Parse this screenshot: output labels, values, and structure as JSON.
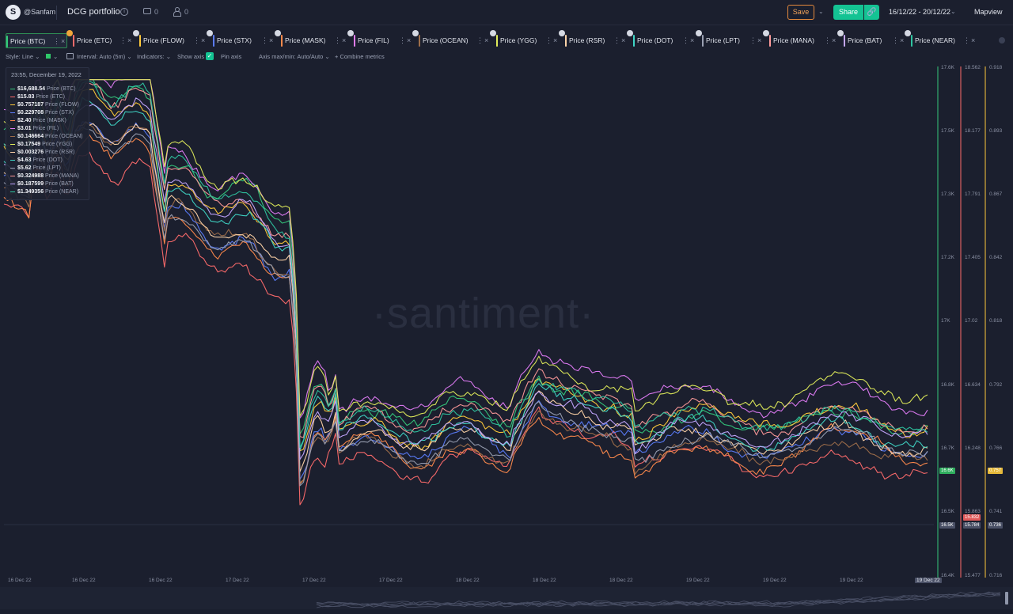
{
  "header": {
    "author": "@Sanfam",
    "title": "DCG portfolio",
    "comments": "0",
    "users": "0",
    "save": "Save",
    "share": "Share",
    "date_range": "16/12/22 - 20/12/22",
    "mapview": "Mapview"
  },
  "metrics": [
    {
      "label": "Price (BTC)",
      "color": "#34c77b"
    },
    {
      "label": "Price (ETC)",
      "color": "#ff6b6b"
    },
    {
      "label": "Price (FLOW)",
      "color": "#ffca3a"
    },
    {
      "label": "Price (STX)",
      "color": "#5b7cfa"
    },
    {
      "label": "Price (MASK)",
      "color": "#ff8a4c"
    },
    {
      "label": "Price (FIL)",
      "color": "#e07bf5"
    },
    {
      "label": "Price (OCEAN)",
      "color": "#9e6e4a"
    },
    {
      "label": "Price (YGG)",
      "color": "#e0ec5a"
    },
    {
      "label": "Price (RSR)",
      "color": "#ffd4a8"
    },
    {
      "label": "Price (DOT)",
      "color": "#3fd6c6"
    },
    {
      "label": "Price (LPT)",
      "color": "#9aa0b2"
    },
    {
      "label": "Price (MANA)",
      "color": "#ff9a9a"
    },
    {
      "label": "Price (BAT)",
      "color": "#c4a7ff"
    },
    {
      "label": "Price (NEAR)",
      "color": "#2ec4a0"
    }
  ],
  "settings": {
    "style": "Style: Line",
    "interval": "Interval: Auto (5m)",
    "indicators": "Indicators:",
    "show_axis": "Show axis",
    "pin_axis": "Pin axis",
    "axis_minmax": "Axis max/min: Auto/Auto",
    "combine": "Combine metrics"
  },
  "tooltip": {
    "date": "23:55, December 19, 2022",
    "rows": [
      {
        "value": "$16,688.54",
        "name": "Price (BTC)",
        "color": "#34c77b"
      },
      {
        "value": "$15.83",
        "name": "Price (ETC)",
        "color": "#ff6b6b"
      },
      {
        "value": "$0.757187",
        "name": "Price (FLOW)",
        "color": "#ffca3a"
      },
      {
        "value": "$0.229708",
        "name": "Price (STX)",
        "color": "#5b7cfa"
      },
      {
        "value": "$2.40",
        "name": "Price (MASK)",
        "color": "#ff8a4c"
      },
      {
        "value": "$3.01",
        "name": "Price (FIL)",
        "color": "#e07bf5"
      },
      {
        "value": "$0.146664",
        "name": "Price (OCEAN)",
        "color": "#9e6e4a"
      },
      {
        "value": "$0.17549",
        "name": "Price (YGG)",
        "color": "#e0ec5a"
      },
      {
        "value": "$0.003276",
        "name": "Price (RSR)",
        "color": "#ffd4a8"
      },
      {
        "value": "$4.63",
        "name": "Price (DOT)",
        "color": "#3fd6c6"
      },
      {
        "value": "$5.62",
        "name": "Price (LPT)",
        "color": "#9aa0b2"
      },
      {
        "value": "$0.324988",
        "name": "Price (MANA)",
        "color": "#ff9a9a"
      },
      {
        "value": "$0.187599",
        "name": "Price (BAT)",
        "color": "#c4a7ff"
      },
      {
        "value": "$1.349356",
        "name": "Price (NEAR)",
        "color": "#2ec4a0"
      }
    ]
  },
  "watermark": "·santiment·",
  "chart_data": {
    "type": "line",
    "title": "",
    "x_labels": [
      "16 Dec 22",
      "16 Dec 22",
      "16 Dec 22",
      "17 Dec 22",
      "17 Dec 22",
      "17 Dec 22",
      "18 Dec 22",
      "18 Dec 22",
      "18 Dec 22",
      "19 Dec 22",
      "19 Dec 22",
      "19 Dec 22"
    ],
    "x_highlight": "19 Dec 22",
    "axes": [
      {
        "name": "BTC",
        "ticks": [
          "17.6K",
          "17.5K",
          "17.3K",
          "17.2K",
          "17K",
          "16.8K",
          "16.7K",
          "16.5K",
          "16.4K"
        ],
        "badges": [
          {
            "text": "16.6K",
            "color": "#2fae5e"
          },
          {
            "text": "16.5K",
            "color": "#4a5066"
          }
        ]
      },
      {
        "name": "ETC",
        "ticks": [
          "18.562",
          "18.177",
          "17.791",
          "17.405",
          "17.02",
          "16.634",
          "16.248",
          "15.863",
          "15.477"
        ],
        "badges": [
          {
            "text": "15.832",
            "color": "#e05a5a"
          },
          {
            "text": "15.784",
            "color": "#4a5066"
          }
        ]
      },
      {
        "name": "FLOW",
        "ticks": [
          "0.918",
          "0.893",
          "0.867",
          "0.842",
          "0.818",
          "0.792",
          "0.766",
          "0.741",
          "0.716"
        ],
        "badges": [
          {
            "text": "0.757",
            "color": "#e6b93a"
          },
          {
            "text": "0.736",
            "color": "#4a5066"
          }
        ]
      }
    ],
    "series": [
      {
        "name": "Price (BTC)",
        "color": "#34c77b",
        "values": [
          17390,
          17420,
          17510,
          16890,
          16720,
          16640,
          16690,
          16660,
          16580,
          16700,
          16620,
          16688
        ]
      },
      {
        "name": "Price (ETC)",
        "color": "#ff6b6b",
        "values": [
          17.9,
          18.1,
          18.2,
          17.3,
          16.5,
          15.9,
          16.0,
          16.1,
          15.9,
          16.0,
          15.9,
          15.83
        ]
      },
      {
        "name": "Price (FLOW)",
        "color": "#ffca3a",
        "values": [
          0.88,
          0.89,
          0.9,
          0.85,
          0.82,
          0.75,
          0.76,
          0.79,
          0.77,
          0.76,
          0.75,
          0.757
        ]
      },
      {
        "name": "Price (STX)",
        "color": "#5b7cfa",
        "values": [
          0.262,
          0.27,
          0.278,
          0.262,
          0.25,
          0.225,
          0.235,
          0.24,
          0.232,
          0.23,
          0.228,
          0.2297
        ]
      },
      {
        "name": "Price (MASK)",
        "color": "#ff8a4c",
        "values": [
          2.65,
          2.62,
          2.78,
          2.68,
          2.6,
          2.42,
          2.45,
          2.5,
          2.41,
          2.42,
          2.39,
          2.4
        ]
      },
      {
        "name": "Price (FIL)",
        "color": "#e07bf5",
        "values": [
          3.42,
          3.46,
          3.48,
          3.34,
          3.3,
          2.98,
          3.05,
          3.12,
          3.08,
          3.06,
          3.04,
          3.01
        ]
      },
      {
        "name": "Price (OCEAN)",
        "color": "#9e6e4a",
        "values": [
          0.168,
          0.17,
          0.176,
          0.162,
          0.158,
          0.152,
          0.149,
          0.15,
          0.147,
          0.146,
          0.145,
          0.1467
        ]
      },
      {
        "name": "Price (YGG)",
        "color": "#e0ec5a",
        "values": [
          0.2,
          0.205,
          0.21,
          0.197,
          0.19,
          0.172,
          0.178,
          0.186,
          0.18,
          0.178,
          0.177,
          0.1755
        ]
      },
      {
        "name": "Price (RSR)",
        "color": "#ffd4a8",
        "values": [
          0.00365,
          0.0037,
          0.00378,
          0.00358,
          0.0035,
          0.00325,
          0.00318,
          0.0032,
          0.00322,
          0.0033,
          0.00327,
          0.003276
        ]
      },
      {
        "name": "Price (DOT)",
        "color": "#3fd6c6",
        "values": [
          5.1,
          5.15,
          5.2,
          4.98,
          4.92,
          4.62,
          4.68,
          4.72,
          4.66,
          4.65,
          4.64,
          4.63
        ]
      },
      {
        "name": "Price (LPT)",
        "color": "#9aa0b2",
        "values": [
          6.1,
          6.15,
          6.2,
          5.9,
          5.82,
          5.6,
          5.65,
          5.7,
          5.63,
          5.62,
          5.6,
          5.62
        ]
      },
      {
        "name": "Price (MANA)",
        "color": "#ff9a9a",
        "values": [
          0.355,
          0.36,
          0.365,
          0.348,
          0.342,
          0.322,
          0.327,
          0.33,
          0.326,
          0.325,
          0.324,
          0.325
        ]
      },
      {
        "name": "Price (BAT)",
        "color": "#c4a7ff",
        "values": [
          0.205,
          0.208,
          0.212,
          0.2,
          0.196,
          0.186,
          0.188,
          0.19,
          0.188,
          0.188,
          0.187,
          0.1876
        ]
      },
      {
        "name": "Price (NEAR)",
        "color": "#2ec4a0",
        "values": [
          1.48,
          1.5,
          1.52,
          1.44,
          1.41,
          1.34,
          1.36,
          1.38,
          1.35,
          1.35,
          1.34,
          1.3494
        ]
      }
    ]
  }
}
